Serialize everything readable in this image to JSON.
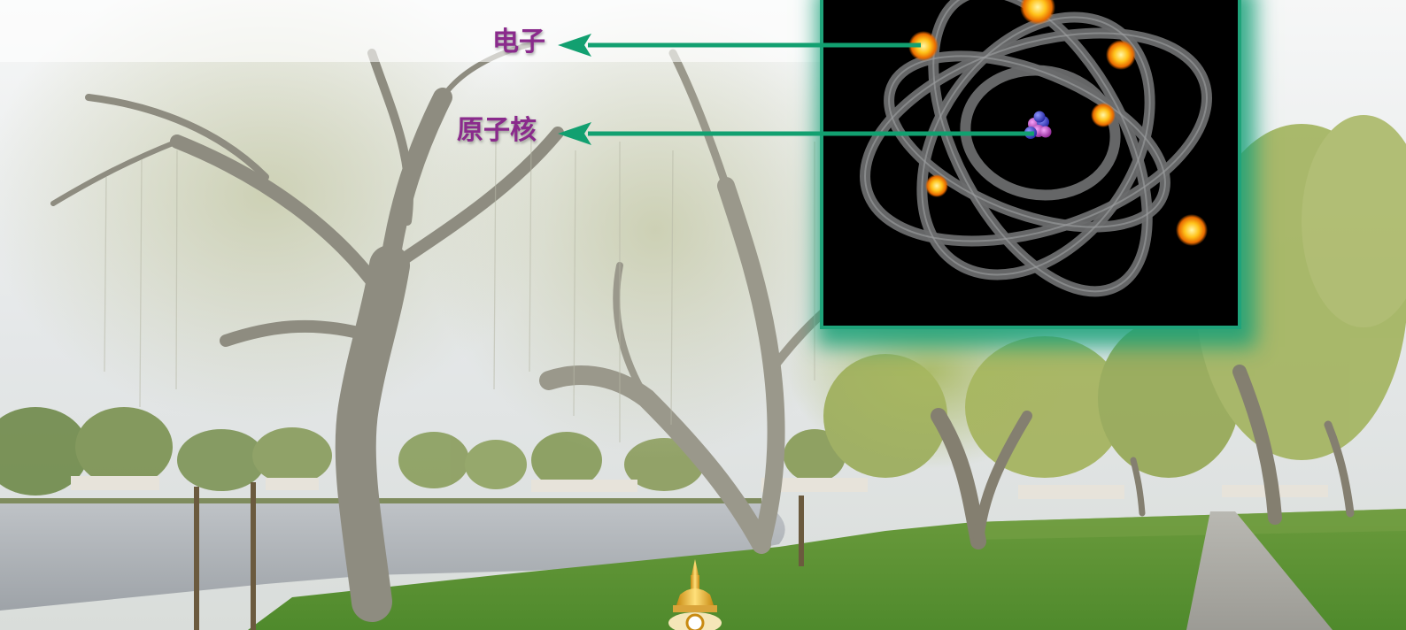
{
  "labels": {
    "electron": "电子",
    "nucleus": "原子核"
  },
  "colors": {
    "label_text": "#8a2a8c",
    "arrow": "#12a070",
    "frame_glow": "#1fa37a",
    "orbit": "#5f6062",
    "nucleus_proton": "#b03ab8",
    "nucleus_neutron": "#3b3fd0",
    "electron_glow": "#ffb000"
  },
  "icons": {
    "background": "lakeside-park-photo",
    "inset": "atom-model-illustration",
    "ornament": "golden-finial-icon"
  }
}
